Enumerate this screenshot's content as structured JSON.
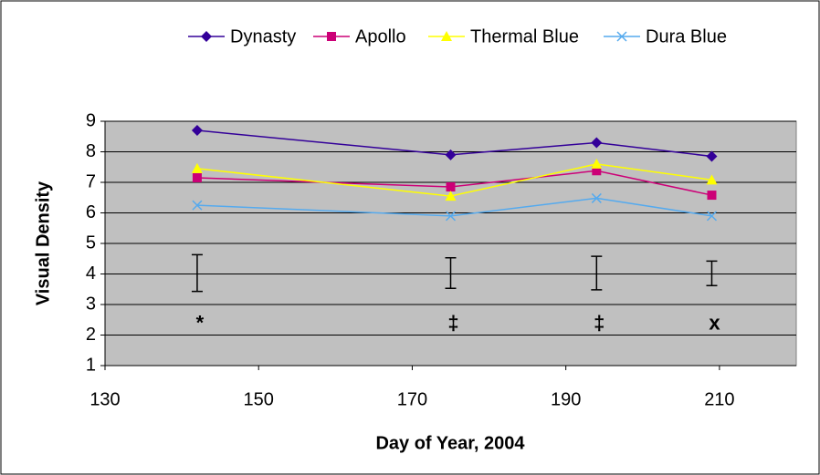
{
  "chart_data": {
    "type": "line",
    "x_label": "Day of Year, 2004",
    "y_label": "Visual Density",
    "xlim": [
      130,
      220
    ],
    "xticks": [
      130,
      150,
      170,
      190,
      210
    ],
    "ylim": [
      1,
      9
    ],
    "yticks": [
      1,
      2,
      3,
      4,
      5,
      6,
      7,
      8,
      9
    ],
    "grid": true,
    "legend": "top",
    "x": [
      142,
      175,
      194,
      209
    ],
    "series": [
      {
        "name": "Dynasty",
        "color": "#330099",
        "marker": "diamond",
        "values": [
          8.7,
          7.9,
          8.3,
          7.85
        ]
      },
      {
        "name": "Apollo",
        "color": "#cc0077",
        "marker": "square",
        "values": [
          7.15,
          6.85,
          7.38,
          6.58
        ]
      },
      {
        "name": "Thermal Blue",
        "color": "#ffff00",
        "marker": "triangle",
        "values": [
          7.45,
          6.55,
          7.6,
          7.08
        ]
      },
      {
        "name": "Dura Blue",
        "color": "#55aaee",
        "marker": "x",
        "values": [
          6.25,
          5.9,
          6.48,
          5.9
        ]
      }
    ],
    "error_bars": {
      "center": [
        4.03,
        4.03,
        4.03,
        4.02
      ],
      "error": [
        0.6,
        0.5,
        0.55,
        0.4
      ]
    },
    "annotations": [
      "*",
      "‡",
      "‡",
      "x"
    ]
  }
}
